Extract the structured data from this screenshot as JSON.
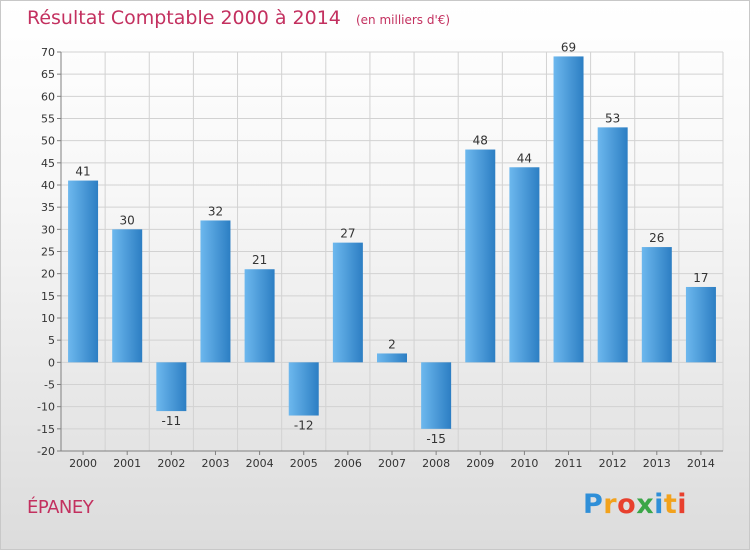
{
  "chart_data": {
    "type": "bar",
    "title": "Résultat Comptable 2000 à 2014",
    "unit": "(en milliers d'€)",
    "categories": [
      "2000",
      "2001",
      "2002",
      "2003",
      "2004",
      "2005",
      "2006",
      "2007",
      "2008",
      "2009",
      "2010",
      "2011",
      "2012",
      "2013",
      "2014"
    ],
    "values": [
      41,
      30,
      -11,
      32,
      21,
      -12,
      27,
      2,
      -15,
      48,
      44,
      69,
      53,
      26,
      17
    ],
    "value_labels": [
      "41",
      "30",
      "-11",
      "32",
      "21",
      "-12",
      "27",
      "2",
      "-15",
      "48",
      "44",
      "69",
      "53",
      "26",
      "17"
    ],
    "ylim": [
      -20,
      70
    ],
    "yticks": [
      70,
      65,
      60,
      55,
      50,
      45,
      40,
      35,
      30,
      25,
      20,
      15,
      10,
      5,
      0,
      -5,
      -10,
      -15,
      -20
    ],
    "ytick_labels": [
      "70",
      "65",
      "60",
      "55",
      "50",
      "45",
      "40",
      "35",
      "30",
      "25",
      "20",
      "15",
      "10",
      "5",
      "0",
      "-5",
      "-10",
      "-15",
      "-20"
    ],
    "xlabel": "",
    "ylabel": "",
    "grid": true,
    "legend": "none"
  },
  "commune": "ÉPANEY",
  "logo": {
    "text": "Proxiti",
    "letters": [
      "P",
      "r",
      "o",
      "x",
      "i",
      "t",
      "i"
    ],
    "colors": [
      "#2f8fd8",
      "#f2a21c",
      "#e8402e",
      "#3aa648",
      "#2f8fd8",
      "#f2a21c",
      "#e8402e"
    ]
  },
  "colors": {
    "title": "#c3305f",
    "bar_light": "#6db8ee",
    "bar_dark": "#2c7ec3",
    "grid": "#d2d2d2",
    "axis": "#808080"
  }
}
